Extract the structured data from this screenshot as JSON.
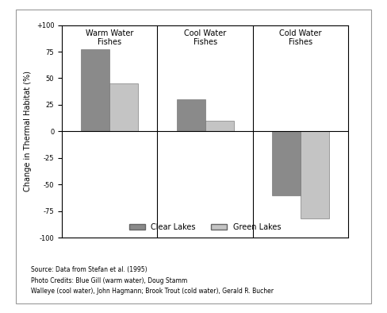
{
  "chart_data": {
    "type": "bar",
    "y_label": "Change in Thermal Habitat (%)",
    "categories": [
      "Warm Water Fishes",
      "Cool Water Fishes",
      "Cold Water Fishes"
    ],
    "series": [
      {
        "name": "Clear Lakes",
        "color": "#8a8a8a",
        "values": [
          77,
          30,
          -60
        ]
      },
      {
        "name": "Green Lakes",
        "color": "#c4c4c4",
        "values": [
          45,
          10,
          -82
        ]
      }
    ],
    "ylim": [
      -100,
      100
    ],
    "yticks": [
      -100,
      -75,
      -50,
      -25,
      0,
      25,
      50,
      75,
      {
        "value": 100,
        "label": "+100"
      }
    ],
    "tick_labels": "y",
    "legend": "lower center",
    "annotations": [
      "Source: Data from Stefan et al. (1995)",
      "Photo Credits: Blue Gill (warm water), Doug Stamm",
      "Walleye (cool water), John Hagmann; Brook Trout (cold water), Gerald R. Bucher"
    ]
  }
}
